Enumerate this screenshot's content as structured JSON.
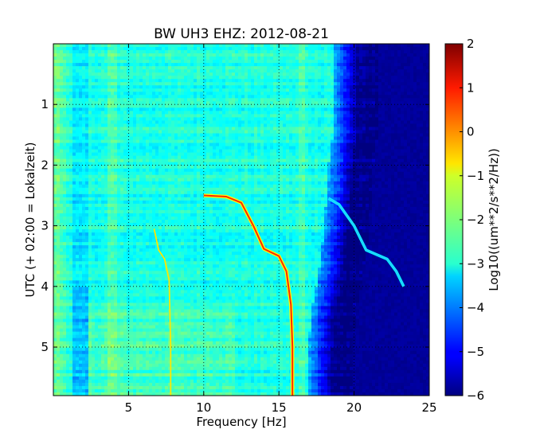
{
  "chart_data": {
    "type": "heatmap",
    "title": "BW UH3 EHZ: 2012-08-21",
    "xlabel": "Frequency [Hz]",
    "ylabel": "UTC (+ 02:00 = Lokalzeit)",
    "xlim": [
      0,
      25
    ],
    "ylim": [
      5.8,
      0
    ],
    "x_ticks": [
      5,
      10,
      15,
      20,
      25
    ],
    "y_ticks": [
      1,
      2,
      3,
      4,
      5
    ],
    "grid": true,
    "colormap": "jet",
    "colorbar": {
      "label": "Log10((um**2/s**2/Hz))",
      "range": [
        -6,
        2
      ],
      "ticks": [
        2,
        1,
        0,
        -1,
        -2,
        -3,
        -4,
        -5,
        -6
      ]
    },
    "features": [
      {
        "label": "strong sweep",
        "points": [
          [
            10.0,
            2.5
          ],
          [
            11.5,
            2.52
          ],
          [
            12.5,
            2.62
          ],
          [
            13.3,
            3.0
          ],
          [
            14.0,
            3.38
          ],
          [
            15.0,
            3.5
          ],
          [
            15.5,
            3.75
          ],
          [
            15.8,
            4.3
          ],
          [
            15.9,
            5.0
          ],
          [
            15.9,
            5.8
          ]
        ]
      },
      {
        "label": "weak sweep",
        "points": [
          [
            6.7,
            3.05
          ],
          [
            7.0,
            3.4
          ],
          [
            7.4,
            3.55
          ],
          [
            7.7,
            3.9
          ],
          [
            7.8,
            5.0
          ],
          [
            7.8,
            5.8
          ]
        ]
      },
      {
        "label": "high-frequency sweep",
        "points": [
          [
            18.3,
            2.55
          ],
          [
            19.0,
            2.65
          ],
          [
            20.0,
            3.0
          ],
          [
            20.8,
            3.4
          ],
          [
            22.2,
            3.55
          ],
          [
            22.8,
            3.75
          ],
          [
            23.3,
            4.0
          ]
        ]
      },
      {
        "label": "band edge",
        "points": [
          [
            18.6,
            0.0
          ],
          [
            18.6,
            1.5
          ],
          [
            18.3,
            2.0
          ],
          [
            18.2,
            2.5
          ],
          [
            18.0,
            3.0
          ],
          [
            17.8,
            3.5
          ],
          [
            17.5,
            4.0
          ],
          [
            17.1,
            4.5
          ],
          [
            17.0,
            5.0
          ],
          [
            17.0,
            5.8
          ]
        ]
      }
    ]
  }
}
